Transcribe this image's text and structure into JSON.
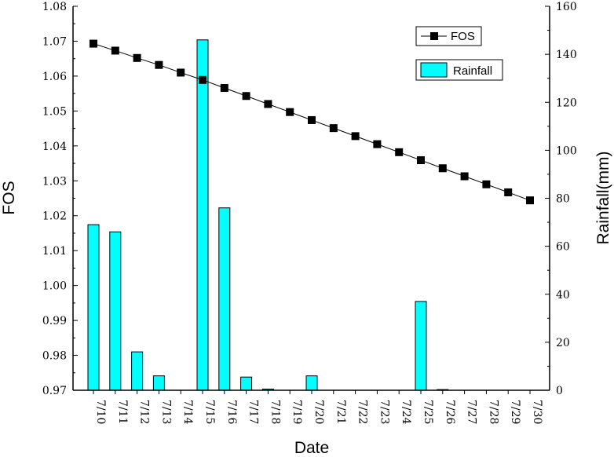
{
  "chart_data": {
    "type": "bar+line",
    "categories": [
      "7/10",
      "7/11",
      "7/12",
      "7/13",
      "7/14",
      "7/15",
      "7/16",
      "7/17",
      "7/18",
      "7/19",
      "7/20",
      "7/21",
      "7/22",
      "7/23",
      "7/24",
      "7/25",
      "7/26",
      "7/27",
      "7/28",
      "7/29",
      "7/30"
    ],
    "xlabel": "Date",
    "left_axis": {
      "label": "FOS",
      "ylim": [
        0.97,
        1.08
      ],
      "ticks": [
        "0.97",
        "0.98",
        "0.99",
        "1.00",
        "1.01",
        "1.02",
        "1.03",
        "1.04",
        "1.05",
        "1.06",
        "1.07",
        "1.08"
      ]
    },
    "right_axis": {
      "label": "Rainfall(mm)",
      "ylim": [
        0,
        160
      ],
      "ticks": [
        "0",
        "20",
        "40",
        "60",
        "80",
        "100",
        "120",
        "140",
        "160"
      ]
    },
    "series": [
      {
        "name": "FOS",
        "type": "line",
        "axis": "left",
        "marker": "square",
        "values": [
          1.0693,
          1.0673,
          1.0652,
          1.0632,
          1.061,
          1.0589,
          1.0566,
          1.0543,
          1.052,
          1.0497,
          1.0474,
          1.0451,
          1.0428,
          1.0405,
          1.0382,
          1.0359,
          1.0336,
          1.0313,
          1.029,
          1.0267,
          1.0244
        ]
      },
      {
        "name": "Rainfall",
        "type": "bar",
        "axis": "right",
        "values": [
          69,
          66,
          16,
          6,
          0,
          146,
          76,
          5.5,
          0.5,
          0,
          6,
          0,
          0,
          0,
          0,
          37,
          0.3,
          0,
          0,
          0,
          0
        ]
      }
    ],
    "fos_values_note_free": true,
    "legend": {
      "position": "top-right",
      "entries": [
        "FOS",
        "Rainfall"
      ]
    },
    "colors": {
      "bar_fill": "#00ffff",
      "bar_stroke": "#000000",
      "line": "#000000",
      "marker": "#000000"
    },
    "grid": false
  }
}
